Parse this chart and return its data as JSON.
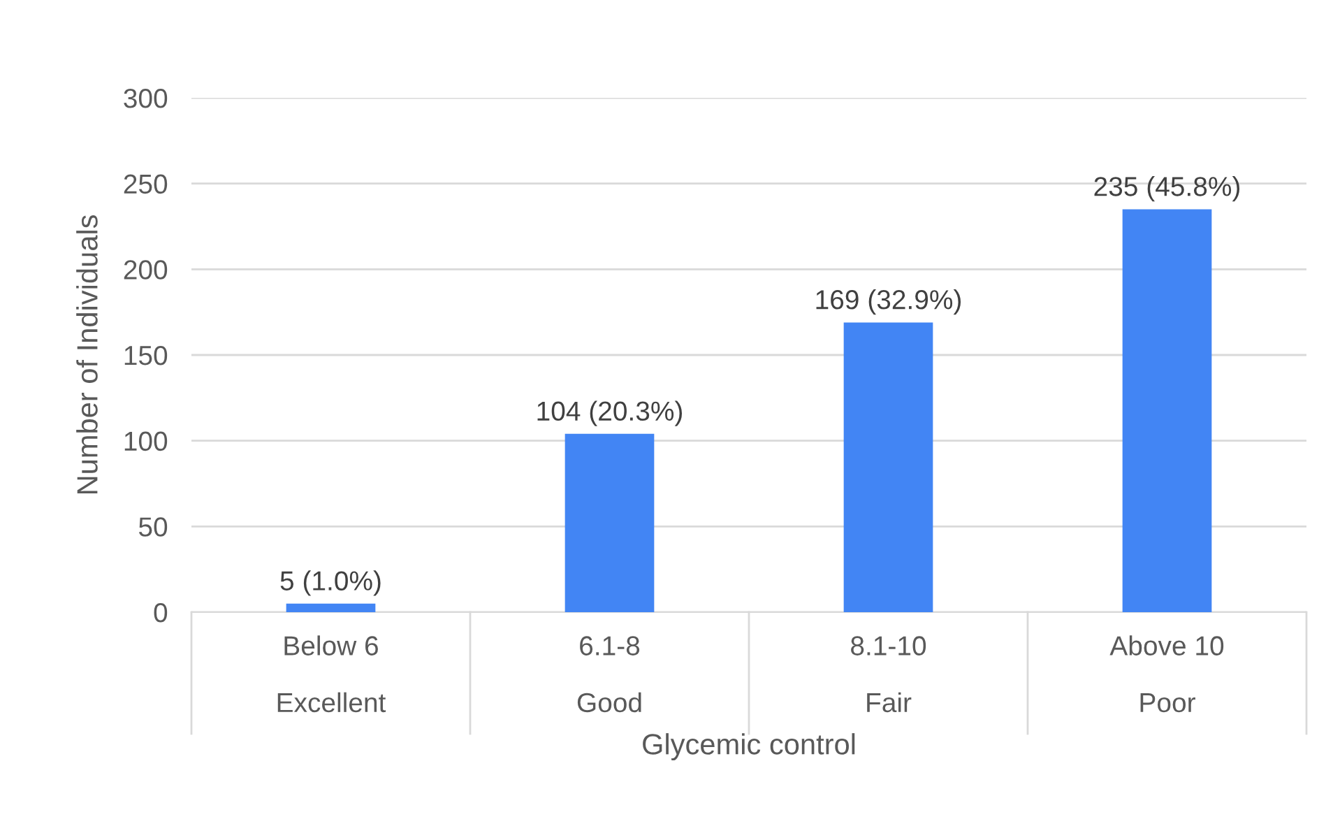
{
  "chart_data": {
    "type": "bar",
    "xlabel": "Glycemic control",
    "ylabel": "Number of Individuals",
    "categories": [
      "Below 6\nExcellent",
      "6.1-8\nGood",
      "8.1-10\nFair",
      "Above 10\nPoor"
    ],
    "values": [
      5,
      104,
      169,
      235
    ],
    "color": "#4285f4",
    "value_labels": [
      "5 (1.0%)",
      "104 (20.3%)",
      "169 (32.9%)",
      "235 (45.8%)"
    ],
    "ylim": [
      0,
      300
    ],
    "yticks": [
      0,
      50,
      100,
      150,
      200,
      250,
      300
    ],
    "grid": "y",
    "legend": false
  }
}
